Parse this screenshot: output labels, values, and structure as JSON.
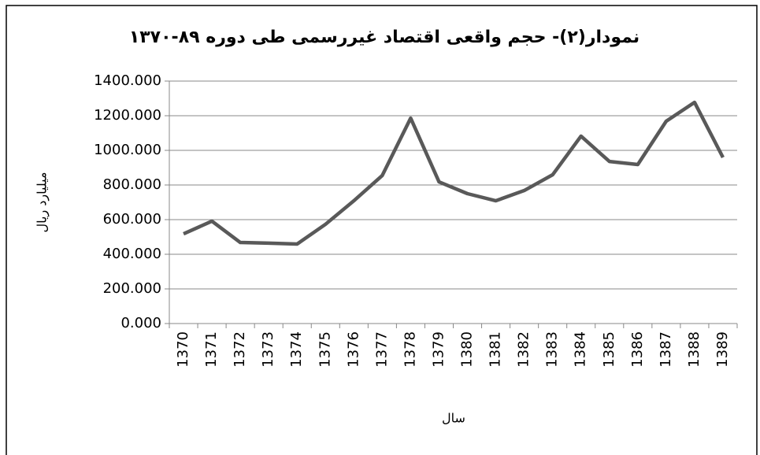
{
  "chart_data": {
    "type": "line",
    "title": "نمودار(۲)- حجم واقعی اقتصاد غیررسمی طی دوره ۸۹-۱۳۷۰",
    "x_label": "سال",
    "y_label": "میلیارد ریال",
    "categories": [
      "1370",
      "1371",
      "1372",
      "1373",
      "1374",
      "1375",
      "1376",
      "1377",
      "1378",
      "1379",
      "1380",
      "1381",
      "1382",
      "1383",
      "1384",
      "1385",
      "1386",
      "1387",
      "1388",
      "1389"
    ],
    "series": [
      {
        "color": "#595959",
        "values": [
          518,
          591,
          468,
          464,
          459,
          573,
          709,
          855,
          1186,
          818,
          750,
          709,
          768,
          859,
          1082,
          936,
          918,
          1168,
          1277,
          959
        ]
      }
    ],
    "ylim": [
      0,
      1400
    ],
    "yticks": [
      {
        "value": 0,
        "label": "0.000"
      },
      {
        "value": 200,
        "label": "200.000"
      },
      {
        "value": 400,
        "label": "400.000"
      },
      {
        "value": 600,
        "label": "600.000"
      },
      {
        "value": 800,
        "label": "800.000"
      },
      {
        "value": 1000,
        "label": "1000.000"
      },
      {
        "value": 1200,
        "label": "1200.000"
      },
      {
        "value": 1400,
        "label": "1400.000"
      }
    ],
    "grid": true
  }
}
